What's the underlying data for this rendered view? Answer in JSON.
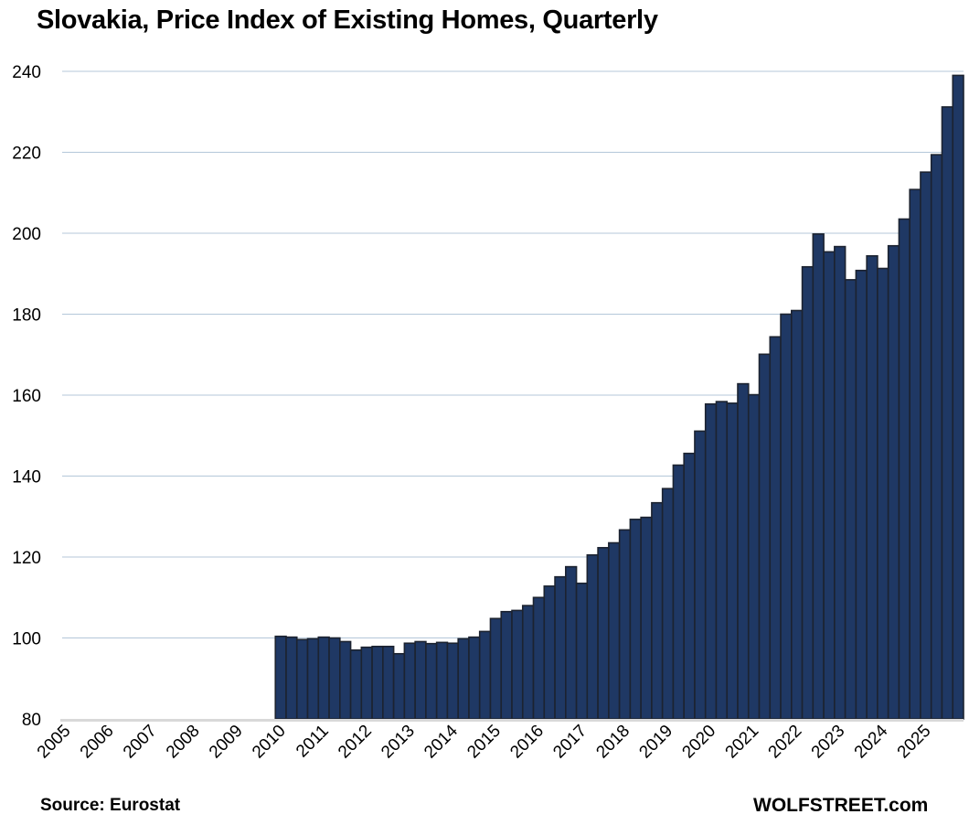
{
  "chart_data": {
    "type": "bar",
    "title": "Slovakia, Price Index of Existing Homes, Quarterly",
    "xlabel": "",
    "ylabel": "",
    "ylim": [
      80,
      240
    ],
    "yticks": [
      80,
      100,
      120,
      140,
      160,
      180,
      200,
      220,
      240
    ],
    "grid": true,
    "x_start_year": 2005,
    "x_end_year": 2025,
    "x_tick_labels": [
      "2005",
      "2006",
      "2007",
      "2008",
      "2009",
      "2010",
      "2011",
      "2012",
      "2013",
      "2014",
      "2015",
      "2016",
      "2017",
      "2018",
      "2019",
      "2020",
      "2021",
      "2022",
      "2023",
      "2024",
      "2025"
    ],
    "series": [
      {
        "name": "Price Index of Existing Homes",
        "color": "#1f3864",
        "start": "2010 Q1",
        "end": "2025 Q4",
        "categories": [
          "2010 Q1",
          "2010 Q2",
          "2010 Q3",
          "2010 Q4",
          "2011 Q1",
          "2011 Q2",
          "2011 Q3",
          "2011 Q4",
          "2012 Q1",
          "2012 Q2",
          "2012 Q3",
          "2012 Q4",
          "2013 Q1",
          "2013 Q2",
          "2013 Q3",
          "2013 Q4",
          "2014 Q1",
          "2014 Q2",
          "2014 Q3",
          "2014 Q4",
          "2015 Q1",
          "2015 Q2",
          "2015 Q3",
          "2015 Q4",
          "2016 Q1",
          "2016 Q2",
          "2016 Q3",
          "2016 Q4",
          "2017 Q1",
          "2017 Q2",
          "2017 Q3",
          "2017 Q4",
          "2018 Q1",
          "2018 Q2",
          "2018 Q3",
          "2018 Q4",
          "2019 Q1",
          "2019 Q2",
          "2019 Q3",
          "2019 Q4",
          "2020 Q1",
          "2020 Q2",
          "2020 Q3",
          "2020 Q4",
          "2021 Q1",
          "2021 Q2",
          "2021 Q3",
          "2021 Q4",
          "2022 Q1",
          "2022 Q2",
          "2022 Q3",
          "2022 Q4",
          "2023 Q1",
          "2023 Q2",
          "2023 Q3",
          "2023 Q4",
          "2024 Q1",
          "2024 Q2",
          "2024 Q3",
          "2024 Q4",
          "2025 Q1",
          "2025 Q2",
          "2025 Q3",
          "2025 Q4"
        ],
        "values": [
          100.4,
          100.2,
          99.6,
          99.8,
          100.2,
          100.0,
          99.1,
          97.0,
          97.7,
          97.9,
          97.9,
          96.1,
          98.7,
          99.1,
          98.6,
          98.9,
          98.7,
          99.8,
          100.2,
          101.6,
          104.8,
          106.5,
          106.8,
          108.0,
          110.0,
          112.8,
          115.1,
          117.6,
          113.5,
          120.5,
          122.3,
          123.5,
          126.7,
          129.3,
          129.8,
          133.4,
          136.9,
          142.7,
          145.6,
          151.1,
          157.8,
          158.4,
          158.0,
          162.8,
          160.1,
          170.1,
          174.4,
          180.0,
          180.9,
          191.7,
          199.8,
          195.4,
          196.7,
          188.5,
          190.8,
          194.4,
          191.3,
          196.9,
          203.5,
          210.8,
          215.1,
          219.4,
          231.2,
          239.0
        ]
      }
    ],
    "colors": {
      "bar_fill": "#1f3864",
      "bar_stroke": "#1c2330",
      "gridline": "#b4c7d9",
      "axis_line": "#d9d9d9"
    },
    "source": "Source: Eurostat",
    "brand": "WOLFSTREET.com"
  }
}
